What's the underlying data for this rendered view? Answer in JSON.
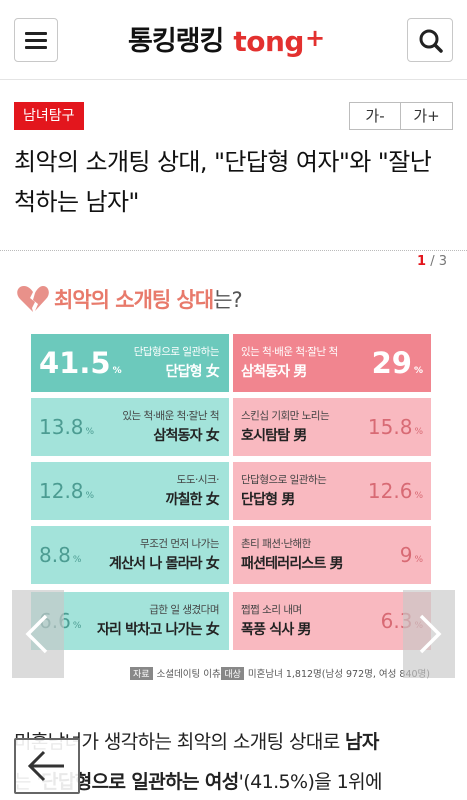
{
  "header": {
    "logo_kr": "통킹랭킹",
    "logo_en": "tong",
    "logo_plus": "+"
  },
  "article": {
    "category": "남녀탐구",
    "font_decrease": "가-",
    "font_increase": "가+",
    "headline": "최악의 소개팅 상대, \"단답형 여자\"와 \"잘난 척하는 남자\"",
    "pager": {
      "current": "1",
      "separator": "/",
      "total": "3"
    }
  },
  "infographic": {
    "title_highlight": "최악의 소개팅 상대",
    "title_rest": "는?",
    "unit": "%",
    "women": [
      {
        "pct": "41.5",
        "sub": "단답형으로 일관하는",
        "main": "단답형 女"
      },
      {
        "pct": "13.8",
        "sub": "있는 척·배운 척·잘난 척",
        "main": "삼척동자 女"
      },
      {
        "pct": "12.8",
        "sub": "도도·시크·",
        "main": "까칠한 女"
      },
      {
        "pct": "8.8",
        "sub": "무조건 먼저 나가는",
        "main": "계산서 나 몰라라 女"
      },
      {
        "pct": "6.6",
        "sub": "급한 일 생겼다며",
        "main": "자리 박차고 나가는 女"
      }
    ],
    "men": [
      {
        "pct": "29",
        "sub": "있는 척·배운 척·잘난 척",
        "main": "삼척동자 男"
      },
      {
        "pct": "15.8",
        "sub": "스킨십 기회만 노리는",
        "main": "호시탐탐 男"
      },
      {
        "pct": "12.6",
        "sub": "단답형으로 일관하는",
        "main": "단답형 男"
      },
      {
        "pct": "9",
        "sub": "촌티 패션·난해한",
        "main": "패션테러리스트 男"
      },
      {
        "pct": "6.3",
        "sub": "쩝쩝 소리 내며",
        "main": "폭풍 식사 男"
      }
    ],
    "source_label": "자료",
    "source_value": "소셜데이팅 이츄",
    "target_label": "대상",
    "target_value": "미혼남녀 1,812명(남성 972명, 여성 840명)"
  },
  "body": {
    "line1_plain": "미혼남녀가 생각하는 최악의 소개팅 상대로 ",
    "line1_bold": "남자",
    "line2_plain_a": "는 '",
    "line2_bold": "단답형으로 일관하는 여성",
    "line2_plain_b": "'(41.5%)을 1위에"
  },
  "icons": {
    "menu": "hamburger-icon",
    "search": "search-icon",
    "title_heart": "broken-heart-icon",
    "prev": "chevron-left-icon",
    "next": "chevron-right-icon",
    "back": "arrow-left-icon"
  },
  "colors": {
    "brand_red": "#e3312f",
    "category_red": "#e3161d",
    "women_top": "#6cc9bc",
    "women": "#a3e3da",
    "men_top": "#f1858f",
    "men": "#f9b9c0"
  }
}
